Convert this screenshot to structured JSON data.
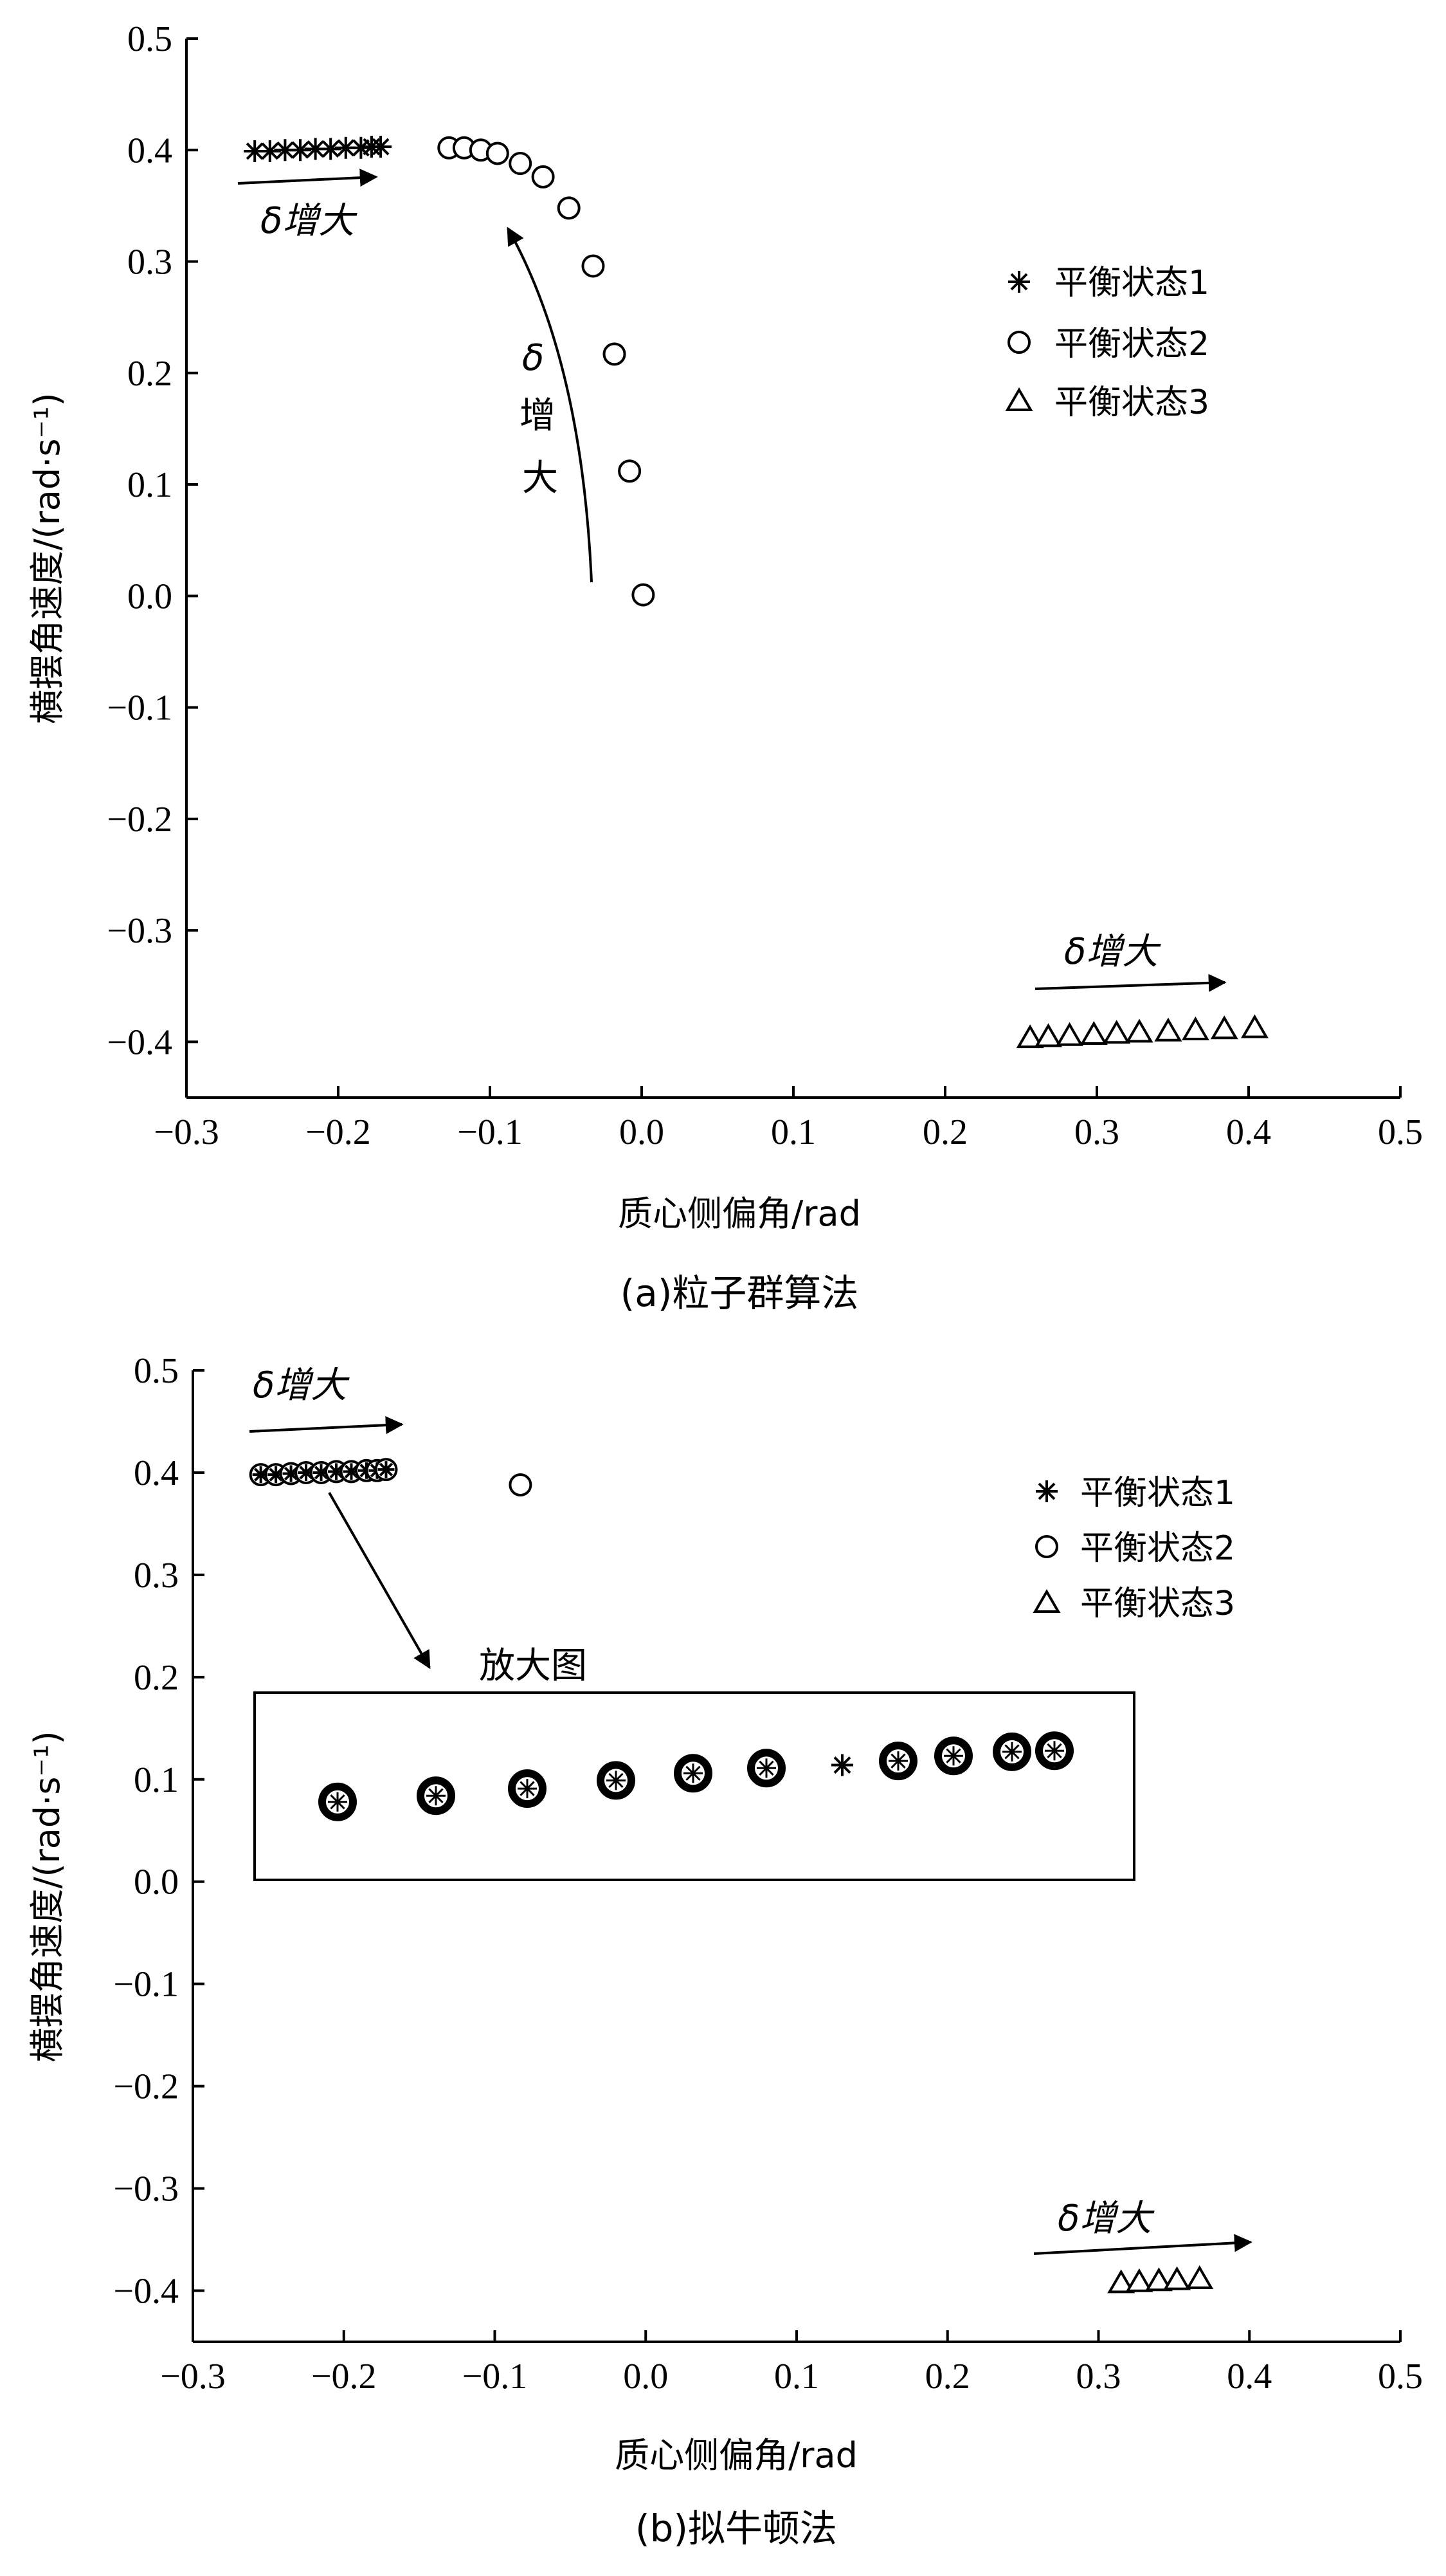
{
  "chart_data": [
    {
      "type": "scatter",
      "caption": "(a)粒子群算法",
      "xlabel": "质心侧偏角/rad",
      "ylabel": "横摆角速度/(rad·s⁻¹)",
      "xlim": [
        -0.3,
        0.5
      ],
      "ylim": [
        -0.45,
        0.5
      ],
      "xticks": [
        -0.3,
        -0.2,
        -0.1,
        0.0,
        0.1,
        0.2,
        0.3,
        0.4,
        0.5
      ],
      "yticks": [
        -0.4,
        -0.3,
        -0.2,
        -0.1,
        0.0,
        0.1,
        0.2,
        0.3,
        0.4,
        0.5
      ],
      "xtick_labels": [
        "−0.3",
        "−0.2",
        "−0.1",
        "0.0",
        "0.1",
        "0.2",
        "0.3",
        "0.4",
        "0.5"
      ],
      "ytick_labels": [
        "−0.4",
        "−0.3",
        "−0.2",
        "−0.1",
        "0.0",
        "0.1",
        "0.2",
        "0.3",
        "0.4",
        "0.5"
      ],
      "legend_position": "top-right",
      "grid": false,
      "series": [
        {
          "name": "平衡状态1",
          "marker": "asterisk",
          "x": [
            -0.255,
            -0.245,
            -0.235,
            -0.225,
            -0.215,
            -0.205,
            -0.195,
            -0.185,
            -0.178,
            -0.172
          ],
          "y": [
            0.399,
            0.399,
            0.4,
            0.4,
            0.401,
            0.401,
            0.402,
            0.402,
            0.403,
            0.403
          ]
        },
        {
          "name": "平衡状态2",
          "marker": "circle",
          "x": [
            -0.127,
            -0.117,
            -0.106,
            -0.095,
            -0.08,
            -0.065,
            -0.048,
            -0.032,
            -0.018,
            -0.008,
            0.001
          ],
          "y": [
            0.402,
            0.402,
            0.4,
            0.397,
            0.388,
            0.376,
            0.348,
            0.296,
            0.217,
            0.112,
            0.001
          ]
        },
        {
          "name": "平衡状态3",
          "marker": "triangle",
          "x": [
            0.256,
            0.268,
            0.282,
            0.298,
            0.313,
            0.328,
            0.347,
            0.365,
            0.384,
            0.404
          ],
          "y": [
            -0.397,
            -0.396,
            -0.395,
            -0.394,
            -0.393,
            -0.392,
            -0.391,
            -0.39,
            -0.389,
            -0.388
          ]
        }
      ],
      "annotations": [
        {
          "text": "δ增大",
          "near": "平衡状态1"
        },
        {
          "text_lines": [
            "δ",
            "增",
            "大"
          ],
          "near": "平衡状态2"
        },
        {
          "text": "δ增大",
          "near": "平衡状态3"
        }
      ]
    },
    {
      "type": "scatter",
      "caption": "(b)拟牛顿法",
      "xlabel": "质心侧偏角/rad",
      "ylabel": "横摆角速度/(rad·s⁻¹)",
      "xlim": [
        -0.3,
        0.5
      ],
      "ylim": [
        -0.45,
        0.5
      ],
      "xticks": [
        -0.3,
        -0.2,
        -0.1,
        0.0,
        0.1,
        0.2,
        0.3,
        0.4,
        0.5
      ],
      "yticks": [
        -0.4,
        -0.3,
        -0.2,
        -0.1,
        0.0,
        0.1,
        0.2,
        0.3,
        0.4,
        0.5
      ],
      "xtick_labels": [
        "−0.3",
        "−0.2",
        "−0.1",
        "0.0",
        "0.1",
        "0.2",
        "0.3",
        "0.4",
        "0.5"
      ],
      "ytick_labels": [
        "−0.4",
        "−0.3",
        "−0.2",
        "−0.1",
        "0.0",
        "0.1",
        "0.2",
        "0.3",
        "0.4",
        "0.5"
      ],
      "legend_position": "top-right",
      "grid": false,
      "series": [
        {
          "name": "平衡状态1",
          "marker": "asterisk+circle",
          "x": [
            -0.255,
            -0.245,
            -0.235,
            -0.225,
            -0.215,
            -0.205,
            -0.195,
            -0.185,
            -0.178,
            -0.172
          ],
          "y": [
            0.398,
            0.398,
            0.399,
            0.4,
            0.4,
            0.401,
            0.401,
            0.402,
            0.402,
            0.403
          ]
        },
        {
          "name": "平衡状态2",
          "marker": "circle",
          "x": [
            -0.083
          ],
          "y": [
            0.388
          ]
        },
        {
          "name": "平衡状态3",
          "marker": "triangle",
          "x": [
            0.315,
            0.327,
            0.34,
            0.352,
            0.367
          ],
          "y": [
            -0.393,
            -0.392,
            -0.391,
            -0.39,
            -0.389
          ]
        }
      ],
      "inset": {
        "label": "放大图",
        "markers": [
          "bold-circle",
          "bold-circle",
          "bold-circle",
          "bold-circle",
          "bold-circle",
          "bold-circle",
          "asterisk",
          "bold-circle",
          "bold-circle",
          "bold-circle",
          "bold-circle"
        ],
        "y": [
          0.078,
          0.084,
          0.091,
          0.099,
          0.106,
          0.111,
          0.114,
          0.118,
          0.123,
          0.127,
          0.128
        ]
      },
      "annotations": [
        {
          "text": "δ增大",
          "near": "平衡状态1"
        },
        {
          "text": "δ增大",
          "near": "平衡状态3"
        }
      ]
    }
  ]
}
